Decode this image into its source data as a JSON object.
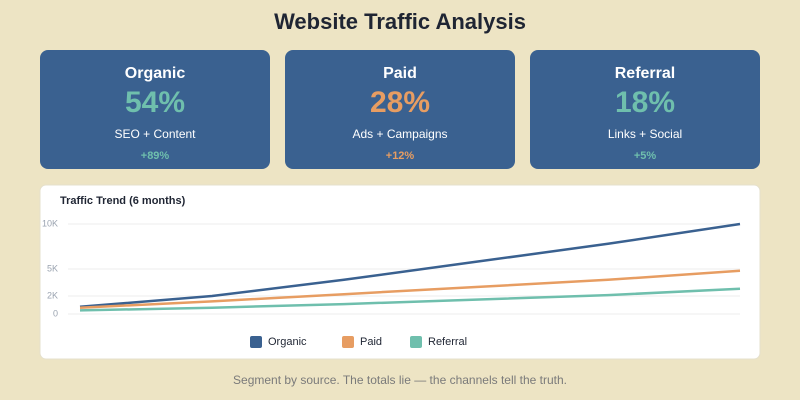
{
  "header": {
    "title": "Website Traffic Analysis"
  },
  "cards": [
    {
      "title": "Organic",
      "value": "54%",
      "subtitle": "SEO + Content",
      "change": "+89%",
      "color": "#6fbfad"
    },
    {
      "title": "Paid",
      "value": "28%",
      "subtitle": "Ads + Campaigns",
      "change": "+12%",
      "color": "#e79d62"
    },
    {
      "title": "Referral",
      "value": "18%",
      "subtitle": "Links + Social",
      "change": "+5%",
      "color": "#6fbfad"
    }
  ],
  "chart_data": {
    "type": "line",
    "title": "Traffic Trend (6 months)",
    "x": [
      1,
      2,
      3,
      4,
      5,
      6
    ],
    "xlim": [
      1,
      6
    ],
    "series": [
      {
        "name": "Organic",
        "color": "#3a6190",
        "values": [
          800,
          2000,
          3800,
          5800,
          7800,
          10000
        ]
      },
      {
        "name": "Paid",
        "color": "#e79d62",
        "values": [
          700,
          1400,
          2200,
          3000,
          3800,
          4800
        ]
      },
      {
        "name": "Referral",
        "color": "#6fbfad",
        "values": [
          400,
          700,
          1100,
          1600,
          2100,
          2800
        ]
      }
    ],
    "ylim": [
      0,
      10000
    ],
    "yticks": [
      0,
      {
        "value": 2000,
        "label": "2K"
      },
      {
        "value": 5000,
        "label": "5K"
      },
      {
        "value": 10000,
        "label": "10K"
      }
    ],
    "grid": true
  },
  "footer": {
    "text": "Segment by source. The totals lie — the channels tell the truth."
  }
}
